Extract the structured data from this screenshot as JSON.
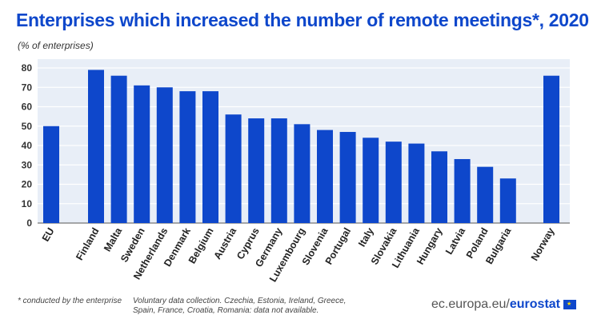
{
  "header": {
    "title": "Enterprises which increased the number of remote meetings*, 2020",
    "subtitle": "(% of enterprises)"
  },
  "footer": {
    "footnote": "* conducted by the enterprise",
    "note": "Voluntary data collection. Czechia, Estonia, Ireland, Greece, Spain, France, Croatia, Romania: data not available.",
    "logo_domain": "ec.europa.eu/",
    "logo_brand": "eurostat"
  },
  "colors": {
    "bar": "#0e47cb",
    "title": "#0e47cb",
    "background": "#ffffff",
    "plot_background": "#e8eef7",
    "gridline": "#ffffff"
  },
  "chart_data": {
    "type": "bar",
    "title": "Enterprises which increased the number of remote meetings*, 2020",
    "ylabel": "(% of enterprises)",
    "ylim": [
      0,
      80
    ],
    "yticks": [
      0,
      10,
      20,
      30,
      40,
      50,
      60,
      70,
      80
    ],
    "grid": true,
    "categories": [
      "EU",
      "Finland",
      "Malta",
      "Sweden",
      "Netherlands",
      "Denmark",
      "Belgium",
      "Austria",
      "Cyprus",
      "Germany",
      "Luxembourg",
      "Slovenia",
      "Portugal",
      "Italy",
      "Slovakia",
      "Lithuania",
      "Hungary",
      "Latvia",
      "Poland",
      "Bulgaria",
      "Norway"
    ],
    "values": [
      50,
      79,
      76,
      71,
      70,
      68,
      68,
      56,
      54,
      54,
      51,
      48,
      47,
      44,
      42,
      41,
      37,
      33,
      29,
      23,
      76
    ]
  }
}
